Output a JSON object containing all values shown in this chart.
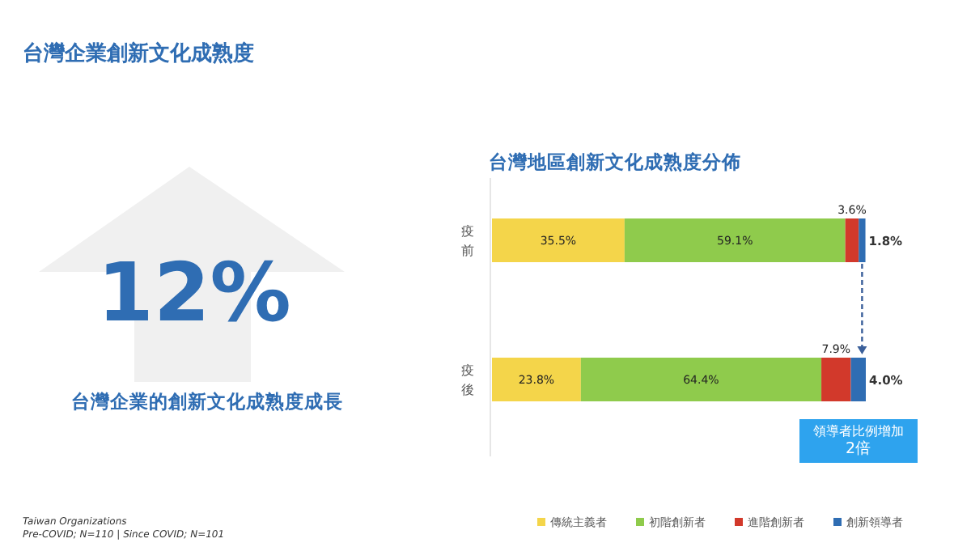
{
  "chart_data": [
    {
      "type": "other",
      "title": "台灣企業創新文化成熟度",
      "annotations": [
        "12%",
        "台灣企業的創新文化成熟度成長",
        "Taiwan Organizations",
        "Pre-COVID; N=110 | Since COVID; N=101"
      ]
    },
    {
      "type": "bar",
      "orientation": "horizontal",
      "stacked": true,
      "title": "台灣地區創新文化成熟度分佈",
      "categories": [
        "疫前",
        "疫後"
      ],
      "series": [
        {
          "name": "傳統主義者",
          "color": "#f4d54a",
          "values": [
            35.5,
            23.8
          ],
          "value_labels": [
            "35.5%",
            "23.8%"
          ]
        },
        {
          "name": "初階創新者",
          "color": "#8fcb4c",
          "values": [
            59.1,
            64.4
          ],
          "value_labels": [
            "59.1%",
            "64.4%"
          ]
        },
        {
          "name": "進階創新者",
          "color": "#d2392b",
          "values": [
            3.6,
            7.9
          ],
          "value_labels": [
            "3.6%",
            "7.9%"
          ]
        },
        {
          "name": "創新領導者",
          "color": "#2f6db3",
          "values": [
            1.8,
            4.0
          ],
          "value_labels": [
            "1.8%",
            "4.0%"
          ]
        }
      ],
      "legend": "bottom",
      "annotations": [
        "領導者比例增加\n2倍"
      ]
    }
  ]
}
